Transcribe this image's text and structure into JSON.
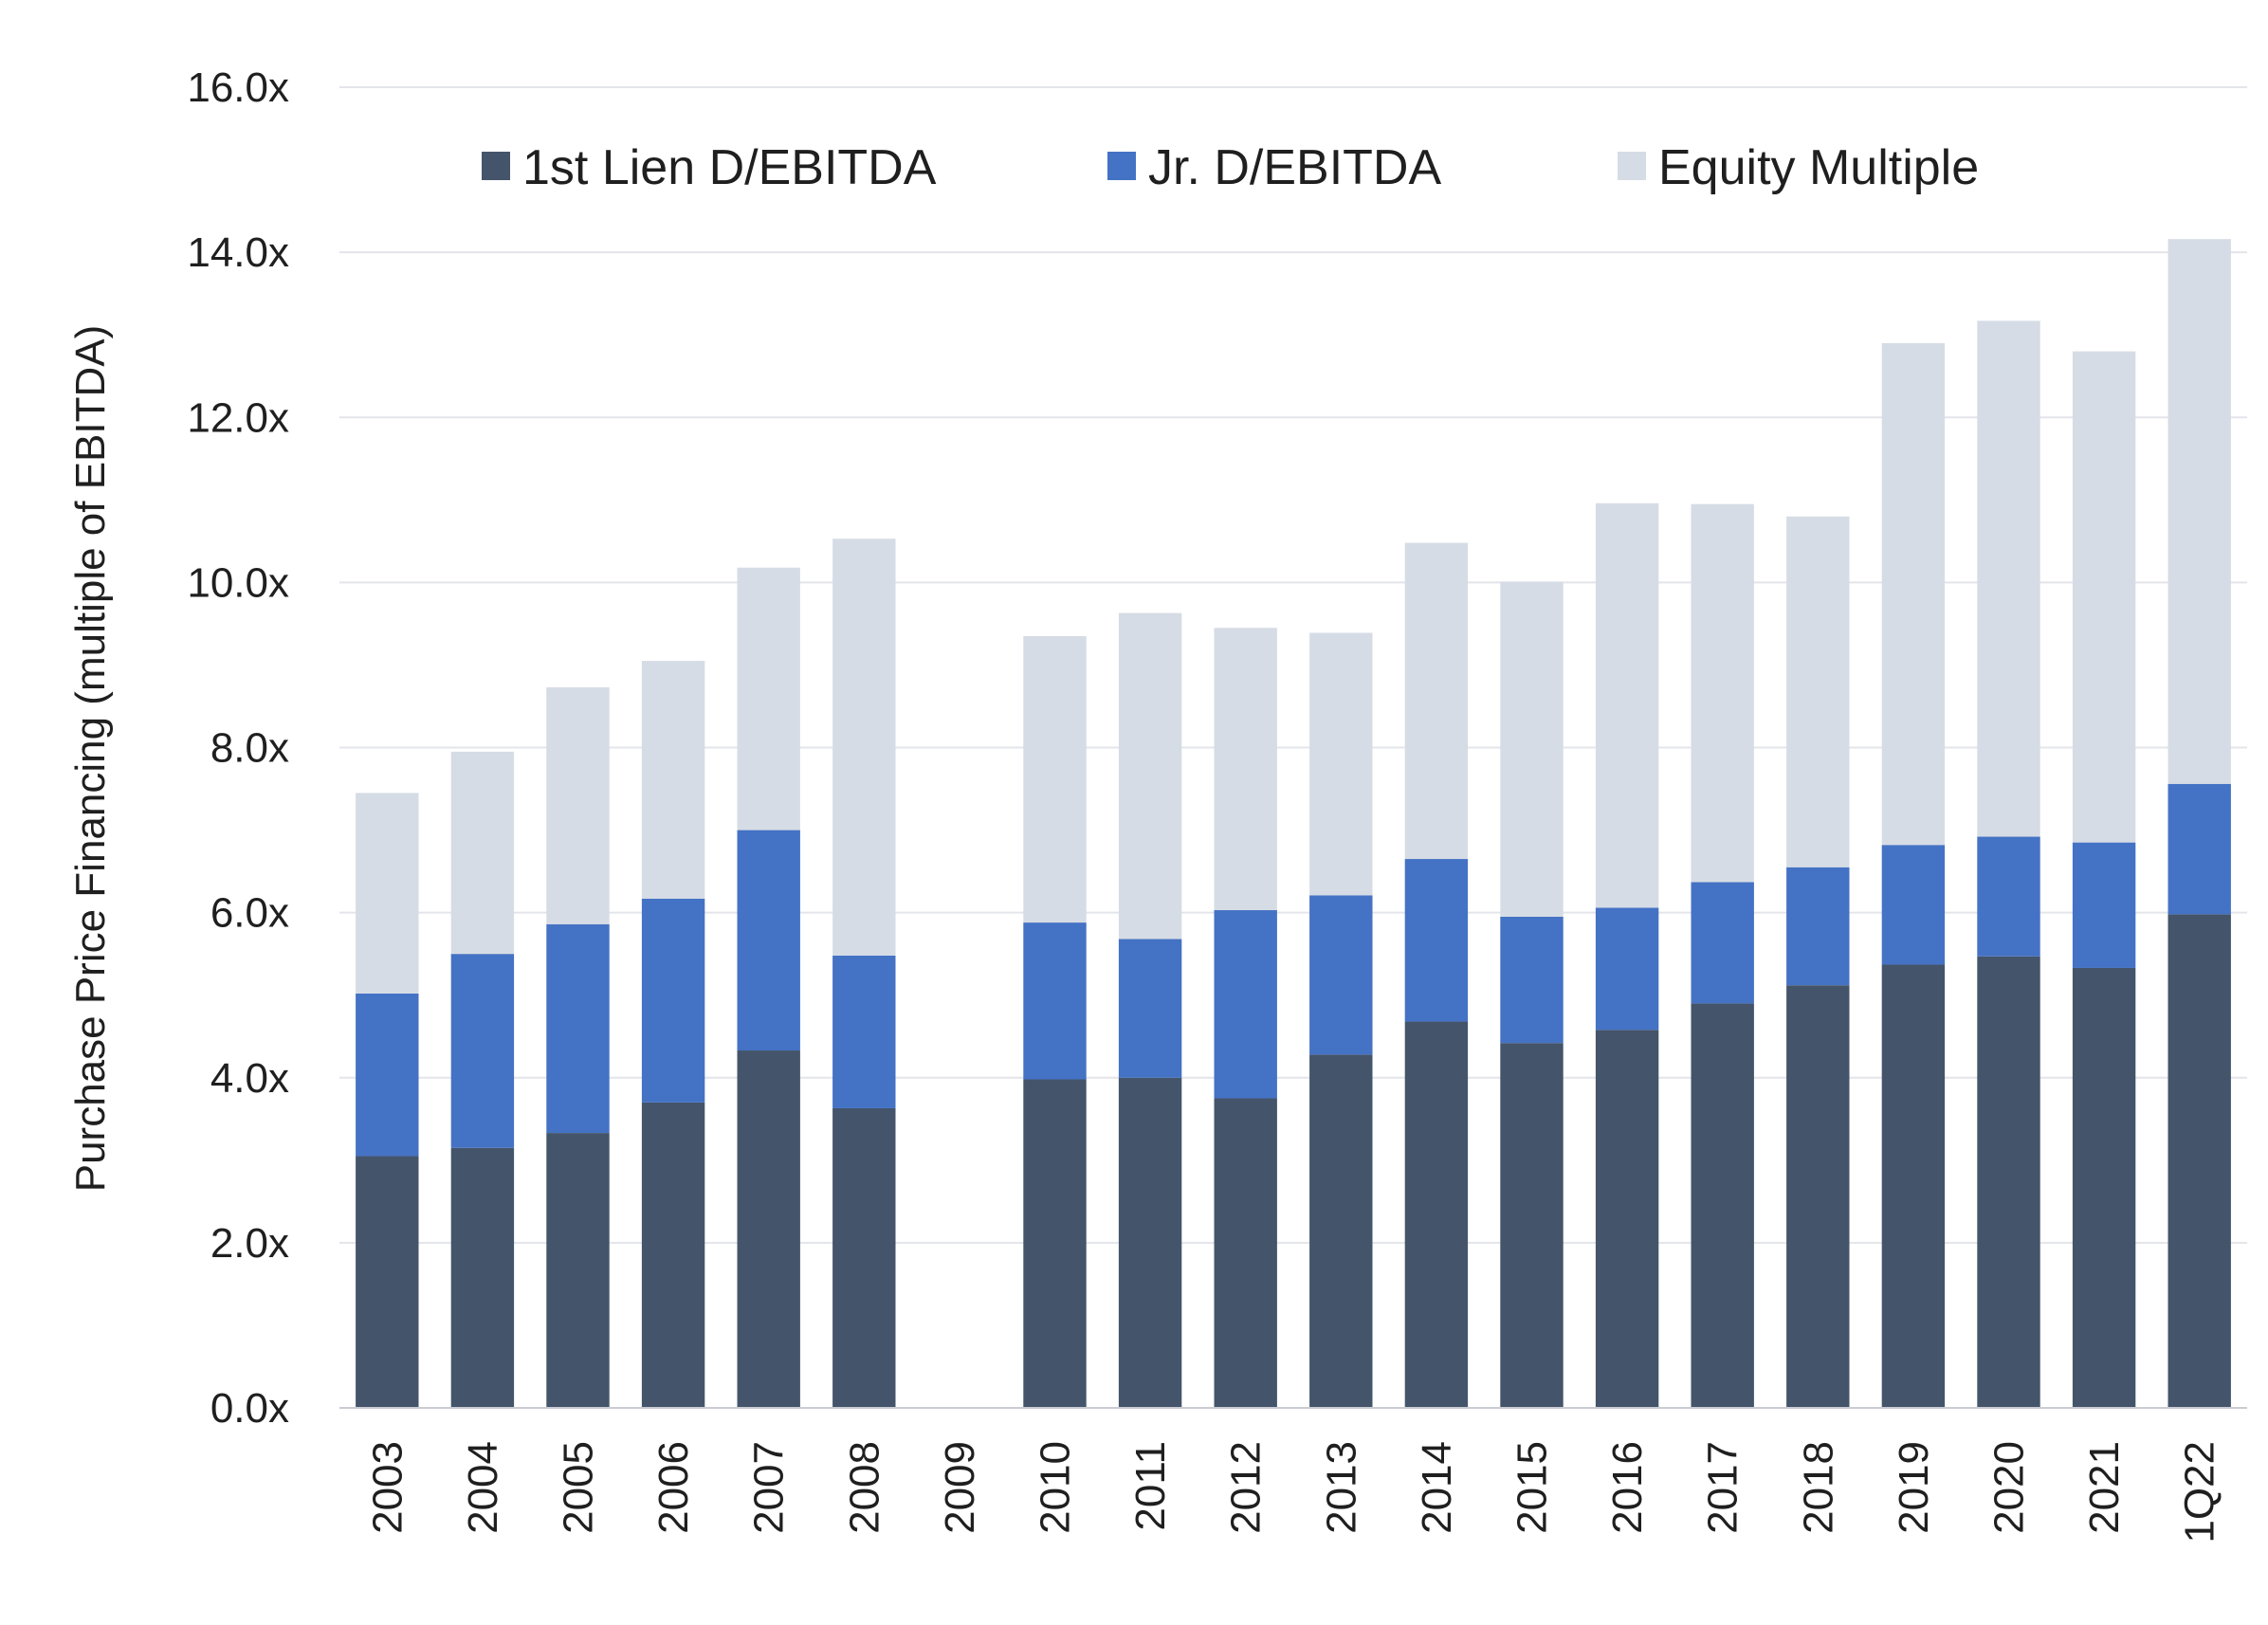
{
  "chart_data": {
    "type": "bar",
    "stacked": true,
    "title": "",
    "xlabel": "",
    "ylabel": "Purchase Price Financing (multiple of EBITDA)",
    "ylim": [
      0,
      16
    ],
    "yticks": [
      "0.0x",
      "2.0x",
      "4.0x",
      "6.0x",
      "8.0x",
      "10.0x",
      "12.0x",
      "14.0x",
      "16.0x"
    ],
    "categories": [
      "2003",
      "2004",
      "2005",
      "2006",
      "2007",
      "2008",
      "2009",
      "2010",
      "2011",
      "2012",
      "2013",
      "2014",
      "2015",
      "2016",
      "2017",
      "2018",
      "2019",
      "2020",
      "2021",
      "1Q22"
    ],
    "series": [
      {
        "name": "1st Lien D/EBITDA",
        "color": "#44546a",
        "values": [
          3.05,
          3.15,
          3.33,
          3.7,
          4.33,
          3.63,
          null,
          3.98,
          4.0,
          3.75,
          4.28,
          4.68,
          4.42,
          4.58,
          4.9,
          5.12,
          5.37,
          5.47,
          5.33,
          5.98
        ]
      },
      {
        "name": "Jr. D/EBITDA",
        "color": "#4472c4",
        "values": [
          1.97,
          2.35,
          2.53,
          2.47,
          2.67,
          1.85,
          null,
          1.9,
          1.68,
          2.28,
          1.93,
          1.97,
          1.53,
          1.48,
          1.47,
          1.43,
          1.45,
          1.45,
          1.52,
          1.58
        ]
      },
      {
        "name": "Equity Multiple",
        "color": "#d6dce5",
        "values": [
          2.43,
          2.45,
          2.87,
          2.88,
          3.18,
          5.05,
          null,
          3.47,
          3.95,
          3.42,
          3.18,
          3.83,
          4.06,
          4.9,
          4.58,
          4.25,
          6.08,
          6.25,
          5.95,
          6.6
        ]
      }
    ],
    "legend": "top",
    "grid": true
  }
}
